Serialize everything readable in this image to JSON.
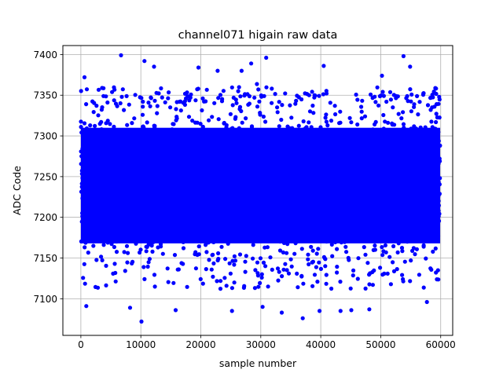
{
  "chart_data": {
    "type": "scatter",
    "title": "channel071 higain raw data",
    "xlabel": "sample number",
    "ylabel": "ADC Code",
    "xlim": [
      -3000,
      62000
    ],
    "ylim": [
      7055,
      7411
    ],
    "x_ticks": [
      0,
      10000,
      20000,
      30000,
      40000,
      50000,
      60000
    ],
    "x_tick_labels": [
      "0",
      "10000",
      "20000",
      "30000",
      "40000",
      "50000",
      "60000"
    ],
    "y_ticks": [
      7100,
      7150,
      7200,
      7250,
      7300,
      7350,
      7400
    ],
    "y_tick_labels": [
      "7100",
      "7150",
      "7200",
      "7250",
      "7300",
      "7350",
      "7400"
    ],
    "grid": true,
    "marker_color": "#0000ff",
    "series": [
      {
        "sample_range": [
          0,
          59900
        ],
        "dense_band": [
          7150,
          7335
        ],
        "approx_mean": 7242,
        "outliers_x": [
          600,
          900,
          6700,
          8200,
          10100,
          10600,
          12200,
          15800,
          19600,
          22800,
          25200,
          26800,
          28400,
          30300,
          30900,
          33500,
          37000,
          39800,
          40500,
          43300,
          45100,
          48100,
          50200,
          53800,
          54900,
          57700
        ],
        "outliers_y": [
          7372,
          7091,
          7399,
          7089,
          7072,
          7392,
          7385,
          7086,
          7384,
          7380,
          7085,
          7380,
          7389,
          7090,
          7396,
          7083,
          7076,
          7085,
          7386,
          7085,
          7086,
          7087,
          7374,
          7398,
          7385,
          7096
        ]
      }
    ]
  }
}
